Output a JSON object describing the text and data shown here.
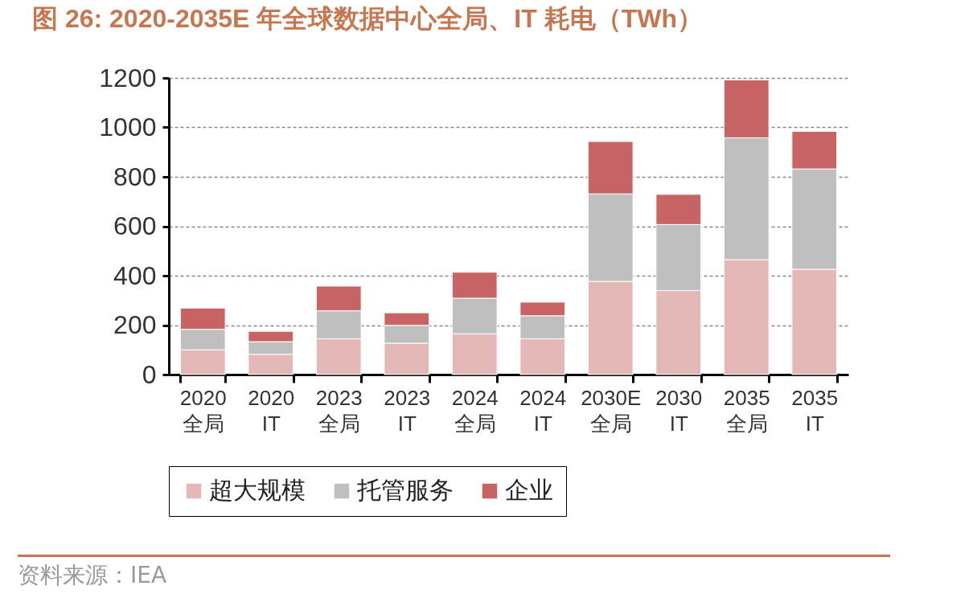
{
  "chart_data": {
    "type": "bar",
    "title": "图 26: 2020-2035E 年全球数据中心全局、IT 耗电（TWh）",
    "categories": [
      "2020\n全局",
      "2020\nIT",
      "2023\n全局",
      "2023\nIT",
      "2024\n全局",
      "2024\nIT",
      "2030E\n全局",
      "2030\nIT",
      "2035\n全局",
      "2035\nIT"
    ],
    "series": [
      {
        "name": "超大规模",
        "color": "#e5b8b8",
        "values": [
          100,
          82,
          145,
          127,
          165,
          145,
          377,
          340,
          465,
          426
        ]
      },
      {
        "name": "托管服务",
        "color": "#bfbfbf",
        "values": [
          83,
          51,
          113,
          72,
          144,
          93,
          354,
          267,
          493,
          406
        ]
      },
      {
        "name": "企业",
        "color": "#c86464",
        "values": [
          86,
          42,
          100,
          51,
          105,
          55,
          212,
          122,
          234,
          152
        ]
      }
    ],
    "stacked": true,
    "ylim": [
      0,
      1200
    ],
    "yticks": [
      0,
      200,
      400,
      600,
      800,
      1000,
      1200
    ],
    "grid": "y",
    "legend": "bottom",
    "annotations": [
      "资料来源：IEA"
    ]
  }
}
